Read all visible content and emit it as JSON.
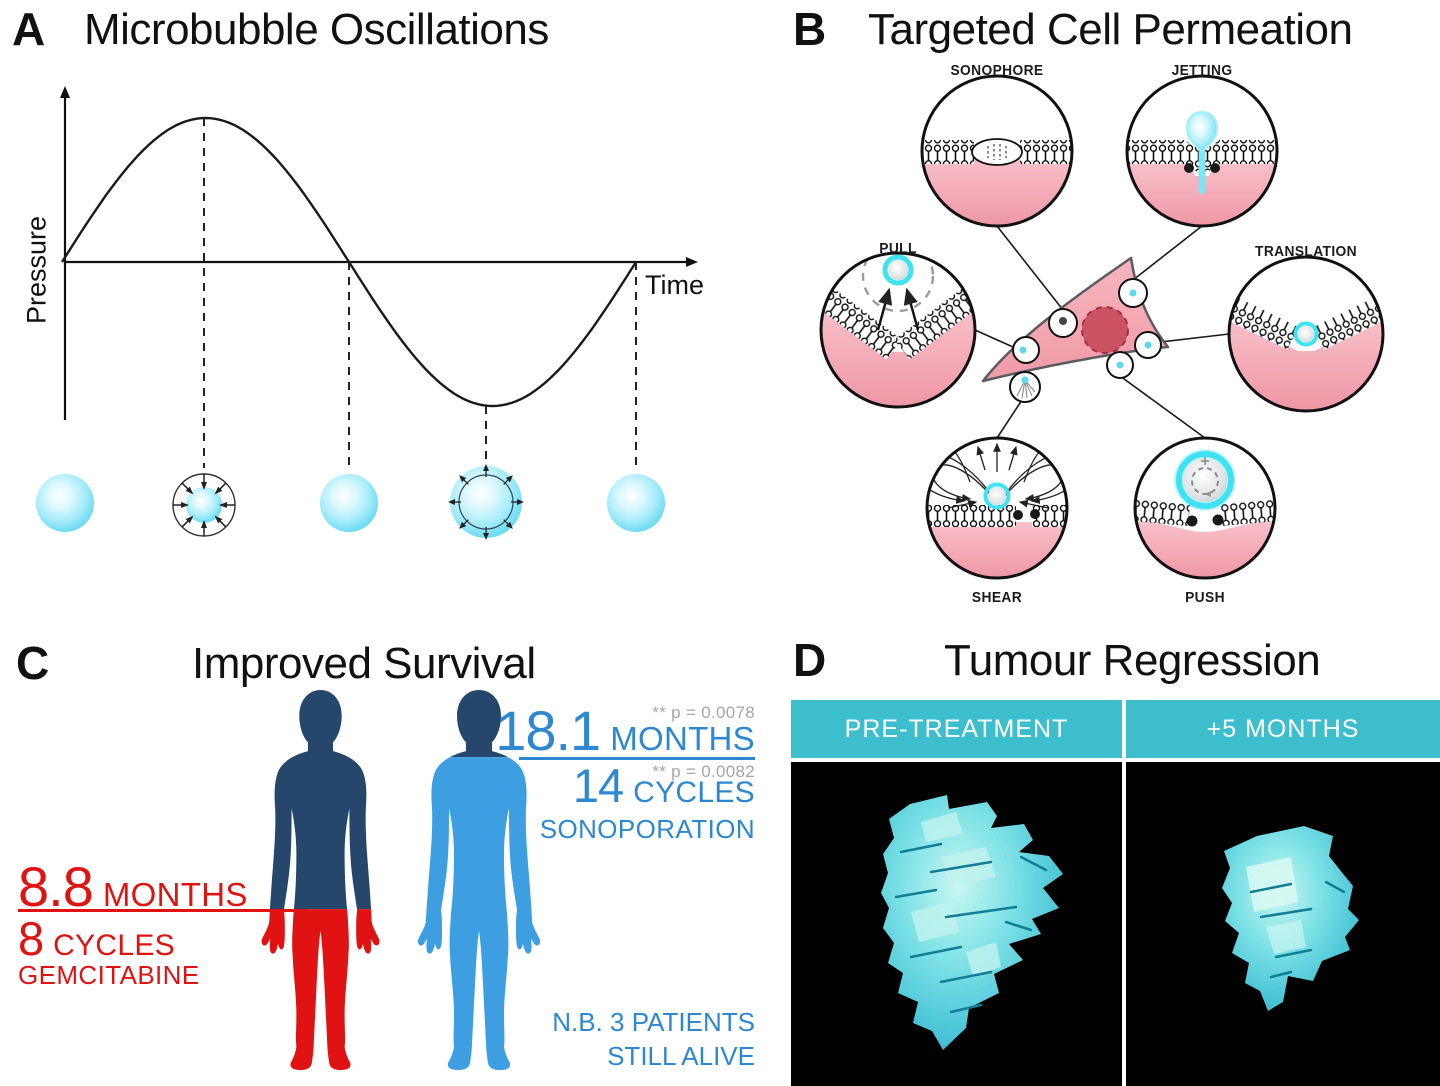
{
  "figure": {
    "panel_a": {
      "label": "A",
      "title": "Microbubble Oscillations",
      "ylabel": "Pressure",
      "xlabel": "Time"
    },
    "panel_b": {
      "label": "B",
      "title": "Targeted Cell Permeation",
      "mechanisms": [
        "SONOPHORE",
        "JETTING",
        "PULL",
        "TRANSLATION",
        "SHEAR",
        "PUSH"
      ]
    },
    "panel_c": {
      "label": "C",
      "title": "Improved Survival",
      "gemcitabine": {
        "value": "8.8",
        "value_unit": "MONTHS",
        "cycles": "8",
        "cycles_unit": "CYCLES",
        "name": "GEMCITABINE"
      },
      "sonoporation": {
        "p_value_months": "** p = 0.0078",
        "value": "18.1",
        "value_unit": "MONTHS",
        "p_value_cycles": "** p = 0.0082",
        "cycles": "14",
        "cycles_unit": "CYCLES",
        "name": "SONOPORATION",
        "note_line1": "N.B. 3 PATIENTS",
        "note_line2": "STILL ALIVE"
      }
    },
    "panel_d": {
      "label": "D",
      "title": "Tumour Regression",
      "column_left": "PRE-TREATMENT",
      "column_right": "+5 MONTHS"
    }
  },
  "colors": {
    "accent_blue": "#2e87d1",
    "silhouette_navy": "#24476b",
    "silhouette_blue": "#3d9fe1",
    "alert_red": "#e01313",
    "p_value_gray": "#a6a6a6",
    "teal_header": "#3dbecd",
    "bubble_cyan": "#6fdcf3",
    "tumour_cyan": "#59cfdf"
  },
  "chart_data": {
    "type": "line",
    "title": "Microbubble Oscillations",
    "xlabel": "Time",
    "ylabel": "Pressure",
    "x_range": [
      0,
      1
    ],
    "series": [
      {
        "name": "acoustic pressure",
        "shape": "sine",
        "cycles": 1,
        "amplitude": 1,
        "phase": 0
      }
    ],
    "grid": false,
    "tick_labels": "none",
    "annotations": [
      "bubble at rest (start)",
      "bubble compressed at positive pressure peak",
      "bubble at rest at zero crossing",
      "bubble expanded at negative pressure peak",
      "bubble at rest (end of cycle)"
    ]
  }
}
